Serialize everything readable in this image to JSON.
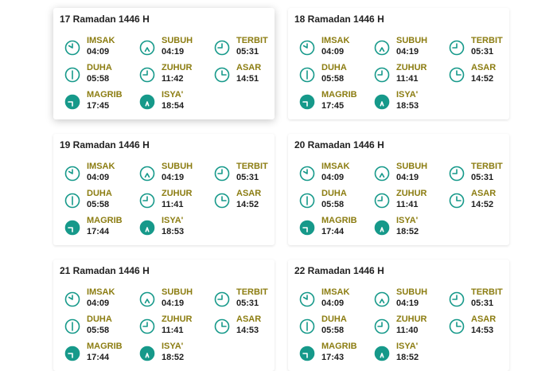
{
  "cards": [
    {
      "title": "17 Ramadan 1446 H",
      "items": [
        {
          "name": "IMSAK",
          "time": "04:09"
        },
        {
          "name": "SUBUH",
          "time": "04:19"
        },
        {
          "name": "TERBIT",
          "time": "05:31"
        },
        {
          "name": "DUHA",
          "time": "05:58"
        },
        {
          "name": "ZUHUR",
          "time": "11:42"
        },
        {
          "name": "ASAR",
          "time": "14:51"
        },
        {
          "name": "MAGRIB",
          "time": "17:45"
        },
        {
          "name": "ISYA'",
          "time": "18:54"
        }
      ]
    },
    {
      "title": "18 Ramadan 1446 H",
      "items": [
        {
          "name": "IMSAK",
          "time": "04:09"
        },
        {
          "name": "SUBUH",
          "time": "04:19"
        },
        {
          "name": "TERBIT",
          "time": "05:31"
        },
        {
          "name": "DUHA",
          "time": "05:58"
        },
        {
          "name": "ZUHUR",
          "time": "11:41"
        },
        {
          "name": "ASAR",
          "time": "14:52"
        },
        {
          "name": "MAGRIB",
          "time": "17:45"
        },
        {
          "name": "ISYA'",
          "time": "18:53"
        }
      ]
    },
    {
      "title": "19 Ramadan 1446 H",
      "items": [
        {
          "name": "IMSAK",
          "time": "04:09"
        },
        {
          "name": "SUBUH",
          "time": "04:19"
        },
        {
          "name": "TERBIT",
          "time": "05:31"
        },
        {
          "name": "DUHA",
          "time": "05:58"
        },
        {
          "name": "ZUHUR",
          "time": "11:41"
        },
        {
          "name": "ASAR",
          "time": "14:52"
        },
        {
          "name": "MAGRIB",
          "time": "17:44"
        },
        {
          "name": "ISYA'",
          "time": "18:53"
        }
      ]
    },
    {
      "title": "20 Ramadan 1446 H",
      "items": [
        {
          "name": "IMSAK",
          "time": "04:09"
        },
        {
          "name": "SUBUH",
          "time": "04:19"
        },
        {
          "name": "TERBIT",
          "time": "05:31"
        },
        {
          "name": "DUHA",
          "time": "05:58"
        },
        {
          "name": "ZUHUR",
          "time": "11:41"
        },
        {
          "name": "ASAR",
          "time": "14:52"
        },
        {
          "name": "MAGRIB",
          "time": "17:44"
        },
        {
          "name": "ISYA'",
          "time": "18:52"
        }
      ]
    },
    {
      "title": "21 Ramadan 1446 H",
      "items": [
        {
          "name": "IMSAK",
          "time": "04:09"
        },
        {
          "name": "SUBUH",
          "time": "04:19"
        },
        {
          "name": "TERBIT",
          "time": "05:31"
        },
        {
          "name": "DUHA",
          "time": "05:58"
        },
        {
          "name": "ZUHUR",
          "time": "11:41"
        },
        {
          "name": "ASAR",
          "time": "14:53"
        },
        {
          "name": "MAGRIB",
          "time": "17:44"
        },
        {
          "name": "ISYA'",
          "time": "18:52"
        }
      ]
    },
    {
      "title": "22 Ramadan 1446 H",
      "items": [
        {
          "name": "IMSAK",
          "time": "04:09"
        },
        {
          "name": "SUBUH",
          "time": "04:19"
        },
        {
          "name": "TERBIT",
          "time": "05:31"
        },
        {
          "name": "DUHA",
          "time": "05:58"
        },
        {
          "name": "ZUHUR",
          "time": "11:40"
        },
        {
          "name": "ASAR",
          "time": "14:53"
        },
        {
          "name": "MAGRIB",
          "time": "17:43"
        },
        {
          "name": "ISYA'",
          "time": "18:52"
        }
      ]
    }
  ]
}
